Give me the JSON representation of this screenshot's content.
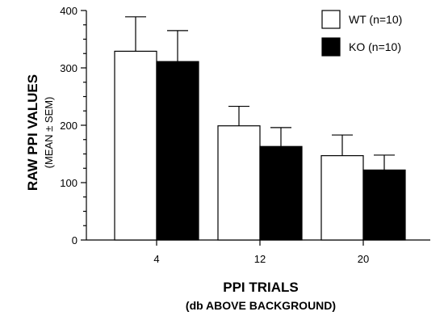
{
  "chart_data": {
    "type": "bar",
    "title": "",
    "categories": [
      "4",
      "12",
      "20"
    ],
    "series": [
      {
        "name": "WT (n=10)",
        "values": [
          329,
          199,
          147
        ],
        "errors": [
          60,
          34,
          36
        ],
        "color": "#ffffff"
      },
      {
        "name": "KO (n=10)",
        "values": [
          311,
          163,
          122
        ],
        "errors": [
          54,
          33,
          26
        ],
        "color": "#000000"
      }
    ],
    "ylabel": "RAW PPI VALUES",
    "ylabel_sub": "(MEAN ± SEM)",
    "xlabel": "PPI TRIALS",
    "xlabel_sub": "(db ABOVE BACKGROUND)",
    "ylim": [
      0,
      400
    ],
    "yticks": [
      0,
      100,
      200,
      300,
      400
    ],
    "ytick_labels": [
      "0",
      "100",
      "200",
      "300",
      "400"
    ],
    "grid": false,
    "legend_position": "top-right"
  }
}
